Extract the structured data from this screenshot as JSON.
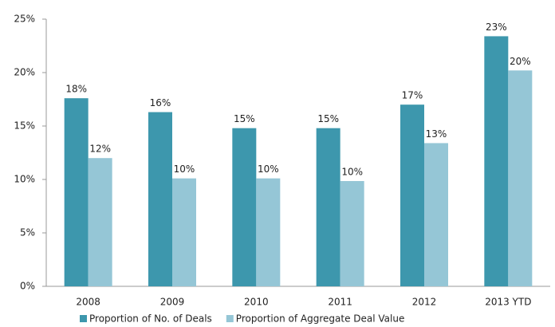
{
  "chart_data": {
    "type": "bar",
    "categories": [
      "2008",
      "2009",
      "2010",
      "2011",
      "2012",
      "2013 YTD"
    ],
    "series": [
      {
        "name": "Proportion of No. of Deals",
        "color": "#3d97ad",
        "values": [
          17.6,
          16.3,
          14.8,
          14.8,
          17.0,
          23.4
        ],
        "value_labels": [
          "18%",
          "16%",
          "15%",
          "15%",
          "17%",
          "23%"
        ]
      },
      {
        "name": "Proportion of Aggregate Deal Value",
        "color": "#95c6d6",
        "values": [
          12.0,
          10.1,
          10.1,
          9.85,
          13.4,
          20.2
        ],
        "value_labels": [
          "12%",
          "10%",
          "10%",
          "10%",
          "13%",
          "20%"
        ]
      }
    ],
    "ylim": [
      0,
      25
    ],
    "yticks": [
      {
        "value": 0,
        "label": "0%"
      },
      {
        "value": 5,
        "label": "5%"
      },
      {
        "value": 10,
        "label": "10%"
      },
      {
        "value": 15,
        "label": "15%"
      },
      {
        "value": 20,
        "label": "20%"
      },
      {
        "value": 25,
        "label": "25%"
      }
    ],
    "grid": false,
    "legend": "bottom"
  }
}
